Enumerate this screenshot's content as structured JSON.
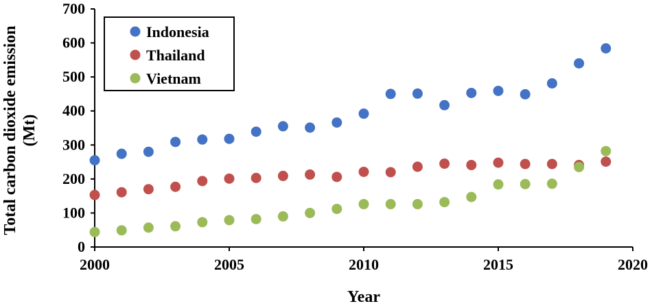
{
  "chart_data": {
    "type": "scatter",
    "title": "",
    "xlabel": "Year",
    "ylabel": [
      "Total carbon dioxide emission",
      "(Mt)"
    ],
    "xlim": [
      2000,
      2020
    ],
    "ylim": [
      0,
      700
    ],
    "xticks": [
      2000,
      2005,
      2010,
      2015,
      2020
    ],
    "yticks": [
      0,
      100,
      200,
      300,
      400,
      500,
      600,
      700
    ],
    "grid": false,
    "legend_position": "top-left",
    "x": [
      2000,
      2001,
      2002,
      2003,
      2004,
      2005,
      2006,
      2007,
      2008,
      2009,
      2010,
      2011,
      2012,
      2013,
      2014,
      2015,
      2016,
      2017,
      2018,
      2019
    ],
    "series": [
      {
        "name": "Indonesia",
        "color": "#4472C4",
        "values": [
          255,
          274,
          280,
          309,
          316,
          318,
          339,
          355,
          351,
          366,
          392,
          450,
          451,
          417,
          453,
          459,
          449,
          481,
          540,
          584
        ]
      },
      {
        "name": "Thailand",
        "color": "#C0504D",
        "values": [
          153,
          161,
          170,
          177,
          194,
          201,
          203,
          209,
          213,
          206,
          221,
          220,
          236,
          245,
          241,
          248,
          244,
          244,
          241,
          251
        ]
      },
      {
        "name": "Vietnam",
        "color": "#9BBB59",
        "values": [
          44,
          49,
          57,
          61,
          73,
          79,
          82,
          90,
          100,
          112,
          126,
          126,
          126,
          132,
          147,
          184,
          185,
          186,
          235,
          282
        ]
      }
    ]
  }
}
